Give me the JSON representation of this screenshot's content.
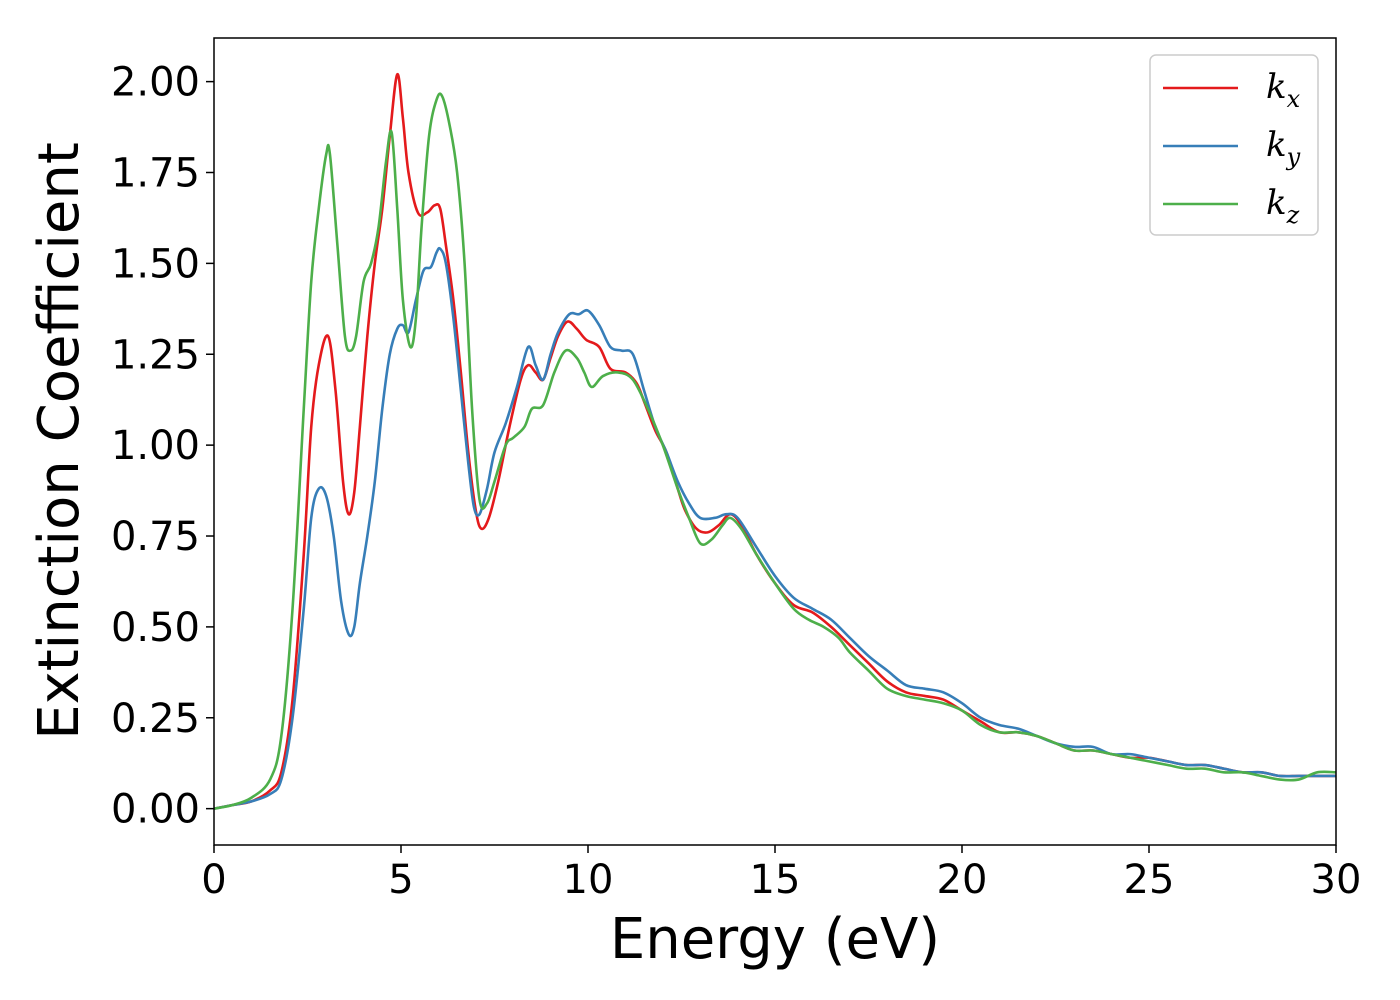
{
  "chart_data": {
    "type": "line",
    "title": "",
    "xlabel": "Energy (eV)",
    "ylabel": "Extinction Coefficient",
    "xlim": [
      0,
      30
    ],
    "ylim": [
      -0.1,
      2.12
    ],
    "xticks": [
      0,
      5,
      10,
      15,
      20,
      25,
      30
    ],
    "yticks": [
      0.0,
      0.25,
      0.5,
      0.75,
      1.0,
      1.25,
      1.5,
      1.75,
      2.0
    ],
    "xtick_labels": [
      "0",
      "5",
      "10",
      "15",
      "20",
      "25",
      "30"
    ],
    "ytick_labels": [
      "0.00",
      "0.25",
      "0.50",
      "0.75",
      "1.00",
      "1.25",
      "1.50",
      "1.75",
      "2.00"
    ],
    "grid": false,
    "legend_position": "top-right",
    "series": [
      {
        "name": "k_x",
        "base": "k",
        "sub": "x",
        "color": "#e41a1c",
        "points": [
          [
            0,
            0
          ],
          [
            0.5,
            0.01
          ],
          [
            1,
            0.02
          ],
          [
            1.5,
            0.05
          ],
          [
            1.8,
            0.1
          ],
          [
            2.1,
            0.3
          ],
          [
            2.4,
            0.7
          ],
          [
            2.6,
            1.05
          ],
          [
            2.8,
            1.22
          ],
          [
            3.05,
            1.3
          ],
          [
            3.25,
            1.15
          ],
          [
            3.45,
            0.9
          ],
          [
            3.6,
            0.81
          ],
          [
            3.75,
            0.87
          ],
          [
            3.9,
            1.05
          ],
          [
            4.1,
            1.3
          ],
          [
            4.3,
            1.5
          ],
          [
            4.5,
            1.65
          ],
          [
            4.7,
            1.85
          ],
          [
            4.9,
            2.02
          ],
          [
            5.05,
            1.9
          ],
          [
            5.2,
            1.75
          ],
          [
            5.45,
            1.64
          ],
          [
            5.7,
            1.64
          ],
          [
            5.9,
            1.66
          ],
          [
            6.05,
            1.65
          ],
          [
            6.2,
            1.55
          ],
          [
            6.4,
            1.4
          ],
          [
            6.6,
            1.2
          ],
          [
            6.8,
            0.98
          ],
          [
            7.0,
            0.82
          ],
          [
            7.15,
            0.77
          ],
          [
            7.35,
            0.8
          ],
          [
            7.6,
            0.9
          ],
          [
            7.9,
            1.05
          ],
          [
            8.2,
            1.18
          ],
          [
            8.4,
            1.22
          ],
          [
            8.6,
            1.2
          ],
          [
            8.8,
            1.18
          ],
          [
            9.0,
            1.24
          ],
          [
            9.2,
            1.3
          ],
          [
            9.45,
            1.34
          ],
          [
            9.7,
            1.32
          ],
          [
            9.95,
            1.29
          ],
          [
            10.3,
            1.27
          ],
          [
            10.6,
            1.21
          ],
          [
            11.0,
            1.2
          ],
          [
            11.3,
            1.17
          ],
          [
            11.5,
            1.12
          ],
          [
            11.8,
            1.04
          ],
          [
            12.1,
            0.98
          ],
          [
            12.4,
            0.88
          ],
          [
            12.6,
            0.82
          ],
          [
            12.9,
            0.77
          ],
          [
            13.2,
            0.76
          ],
          [
            13.5,
            0.78
          ],
          [
            13.8,
            0.81
          ],
          [
            14.1,
            0.78
          ],
          [
            14.5,
            0.7
          ],
          [
            15.0,
            0.62
          ],
          [
            15.5,
            0.56
          ],
          [
            16.0,
            0.54
          ],
          [
            16.5,
            0.5
          ],
          [
            17.0,
            0.45
          ],
          [
            17.5,
            0.4
          ],
          [
            18.0,
            0.35
          ],
          [
            18.5,
            0.32
          ],
          [
            19.0,
            0.31
          ],
          [
            19.5,
            0.3
          ],
          [
            20.0,
            0.27
          ],
          [
            20.5,
            0.24
          ],
          [
            21.0,
            0.21
          ],
          [
            21.5,
            0.21
          ],
          [
            22.0,
            0.2
          ],
          [
            22.5,
            0.18
          ],
          [
            23.0,
            0.16
          ],
          [
            23.5,
            0.16
          ],
          [
            24.0,
            0.15
          ],
          [
            24.5,
            0.14
          ],
          [
            25.0,
            0.14
          ],
          [
            25.5,
            0.13
          ],
          [
            26.0,
            0.12
          ],
          [
            26.5,
            0.12
          ],
          [
            27.0,
            0.11
          ],
          [
            27.5,
            0.1
          ],
          [
            28.0,
            0.1
          ],
          [
            28.5,
            0.09
          ],
          [
            29.0,
            0.09
          ],
          [
            29.5,
            0.09
          ],
          [
            30.0,
            0.09
          ]
        ]
      },
      {
        "name": "k_y",
        "base": "k",
        "sub": "y",
        "color": "#377eb8",
        "points": [
          [
            0,
            0
          ],
          [
            0.5,
            0.01
          ],
          [
            1,
            0.02
          ],
          [
            1.5,
            0.04
          ],
          [
            1.8,
            0.08
          ],
          [
            2.1,
            0.25
          ],
          [
            2.4,
            0.55
          ],
          [
            2.6,
            0.8
          ],
          [
            2.8,
            0.88
          ],
          [
            3.0,
            0.86
          ],
          [
            3.2,
            0.75
          ],
          [
            3.4,
            0.57
          ],
          [
            3.6,
            0.48
          ],
          [
            3.75,
            0.5
          ],
          [
            3.9,
            0.62
          ],
          [
            4.1,
            0.75
          ],
          [
            4.3,
            0.9
          ],
          [
            4.5,
            1.1
          ],
          [
            4.7,
            1.25
          ],
          [
            4.9,
            1.32
          ],
          [
            5.05,
            1.33
          ],
          [
            5.2,
            1.31
          ],
          [
            5.4,
            1.4
          ],
          [
            5.6,
            1.48
          ],
          [
            5.8,
            1.49
          ],
          [
            5.95,
            1.53
          ],
          [
            6.05,
            1.54
          ],
          [
            6.2,
            1.5
          ],
          [
            6.4,
            1.35
          ],
          [
            6.6,
            1.15
          ],
          [
            6.8,
            0.95
          ],
          [
            6.95,
            0.83
          ],
          [
            7.1,
            0.81
          ],
          [
            7.3,
            0.88
          ],
          [
            7.5,
            0.98
          ],
          [
            7.8,
            1.06
          ],
          [
            8.1,
            1.16
          ],
          [
            8.4,
            1.27
          ],
          [
            8.6,
            1.22
          ],
          [
            8.8,
            1.18
          ],
          [
            9.0,
            1.25
          ],
          [
            9.2,
            1.31
          ],
          [
            9.5,
            1.36
          ],
          [
            9.75,
            1.36
          ],
          [
            10.0,
            1.37
          ],
          [
            10.3,
            1.33
          ],
          [
            10.6,
            1.27
          ],
          [
            10.9,
            1.26
          ],
          [
            11.2,
            1.25
          ],
          [
            11.5,
            1.15
          ],
          [
            11.8,
            1.05
          ],
          [
            12.1,
            0.98
          ],
          [
            12.4,
            0.9
          ],
          [
            12.7,
            0.84
          ],
          [
            13.0,
            0.8
          ],
          [
            13.4,
            0.8
          ],
          [
            13.7,
            0.81
          ],
          [
            14.0,
            0.8
          ],
          [
            14.5,
            0.72
          ],
          [
            15.0,
            0.64
          ],
          [
            15.5,
            0.58
          ],
          [
            16.0,
            0.55
          ],
          [
            16.5,
            0.52
          ],
          [
            17.0,
            0.47
          ],
          [
            17.5,
            0.42
          ],
          [
            18.0,
            0.38
          ],
          [
            18.5,
            0.34
          ],
          [
            19.0,
            0.33
          ],
          [
            19.5,
            0.32
          ],
          [
            20.0,
            0.29
          ],
          [
            20.5,
            0.25
          ],
          [
            21.0,
            0.23
          ],
          [
            21.5,
            0.22
          ],
          [
            22.0,
            0.2
          ],
          [
            22.5,
            0.18
          ],
          [
            23.0,
            0.17
          ],
          [
            23.5,
            0.17
          ],
          [
            24.0,
            0.15
          ],
          [
            24.5,
            0.15
          ],
          [
            25.0,
            0.14
          ],
          [
            25.5,
            0.13
          ],
          [
            26.0,
            0.12
          ],
          [
            26.5,
            0.12
          ],
          [
            27.0,
            0.11
          ],
          [
            27.5,
            0.1
          ],
          [
            28.0,
            0.1
          ],
          [
            28.5,
            0.09
          ],
          [
            29.0,
            0.09
          ],
          [
            29.5,
            0.09
          ],
          [
            30.0,
            0.09
          ]
        ]
      },
      {
        "name": "k_z",
        "base": "k",
        "sub": "z",
        "color": "#4daf4a",
        "points": [
          [
            0,
            0
          ],
          [
            0.5,
            0.01
          ],
          [
            1,
            0.03
          ],
          [
            1.5,
            0.08
          ],
          [
            1.8,
            0.2
          ],
          [
            2.1,
            0.55
          ],
          [
            2.4,
            1.1
          ],
          [
            2.6,
            1.45
          ],
          [
            2.8,
            1.65
          ],
          [
            3.0,
            1.8
          ],
          [
            3.1,
            1.8
          ],
          [
            3.3,
            1.55
          ],
          [
            3.5,
            1.3
          ],
          [
            3.65,
            1.26
          ],
          [
            3.8,
            1.3
          ],
          [
            4.0,
            1.45
          ],
          [
            4.2,
            1.5
          ],
          [
            4.4,
            1.6
          ],
          [
            4.6,
            1.78
          ],
          [
            4.75,
            1.86
          ],
          [
            4.9,
            1.65
          ],
          [
            5.05,
            1.4
          ],
          [
            5.25,
            1.27
          ],
          [
            5.4,
            1.35
          ],
          [
            5.55,
            1.6
          ],
          [
            5.75,
            1.85
          ],
          [
            5.95,
            1.95
          ],
          [
            6.1,
            1.96
          ],
          [
            6.3,
            1.88
          ],
          [
            6.5,
            1.75
          ],
          [
            6.7,
            1.5
          ],
          [
            6.9,
            1.1
          ],
          [
            7.1,
            0.85
          ],
          [
            7.3,
            0.84
          ],
          [
            7.5,
            0.9
          ],
          [
            7.8,
            1.0
          ],
          [
            8.0,
            1.02
          ],
          [
            8.3,
            1.05
          ],
          [
            8.5,
            1.1
          ],
          [
            8.8,
            1.11
          ],
          [
            9.1,
            1.2
          ],
          [
            9.4,
            1.26
          ],
          [
            9.7,
            1.24
          ],
          [
            9.9,
            1.2
          ],
          [
            10.1,
            1.16
          ],
          [
            10.4,
            1.19
          ],
          [
            10.8,
            1.2
          ],
          [
            11.2,
            1.18
          ],
          [
            11.6,
            1.1
          ],
          [
            12.0,
            1.0
          ],
          [
            12.4,
            0.88
          ],
          [
            12.7,
            0.8
          ],
          [
            13.0,
            0.73
          ],
          [
            13.3,
            0.74
          ],
          [
            13.6,
            0.78
          ],
          [
            13.8,
            0.8
          ],
          [
            14.1,
            0.77
          ],
          [
            14.5,
            0.7
          ],
          [
            15.0,
            0.62
          ],
          [
            15.5,
            0.55
          ],
          [
            15.9,
            0.52
          ],
          [
            16.3,
            0.5
          ],
          [
            16.7,
            0.47
          ],
          [
            17.0,
            0.43
          ],
          [
            17.5,
            0.38
          ],
          [
            18.0,
            0.33
          ],
          [
            18.5,
            0.31
          ],
          [
            19.0,
            0.3
          ],
          [
            19.5,
            0.29
          ],
          [
            20.0,
            0.27
          ],
          [
            20.5,
            0.23
          ],
          [
            21.0,
            0.21
          ],
          [
            21.5,
            0.21
          ],
          [
            22.0,
            0.2
          ],
          [
            22.5,
            0.18
          ],
          [
            23.0,
            0.16
          ],
          [
            23.5,
            0.16
          ],
          [
            24.0,
            0.15
          ],
          [
            24.5,
            0.14
          ],
          [
            25.0,
            0.13
          ],
          [
            25.5,
            0.12
          ],
          [
            26.0,
            0.11
          ],
          [
            26.5,
            0.11
          ],
          [
            27.0,
            0.1
          ],
          [
            27.5,
            0.1
          ],
          [
            28.0,
            0.09
          ],
          [
            28.5,
            0.08
          ],
          [
            29.0,
            0.08
          ],
          [
            29.5,
            0.1
          ],
          [
            30.0,
            0.1
          ]
        ]
      }
    ]
  }
}
